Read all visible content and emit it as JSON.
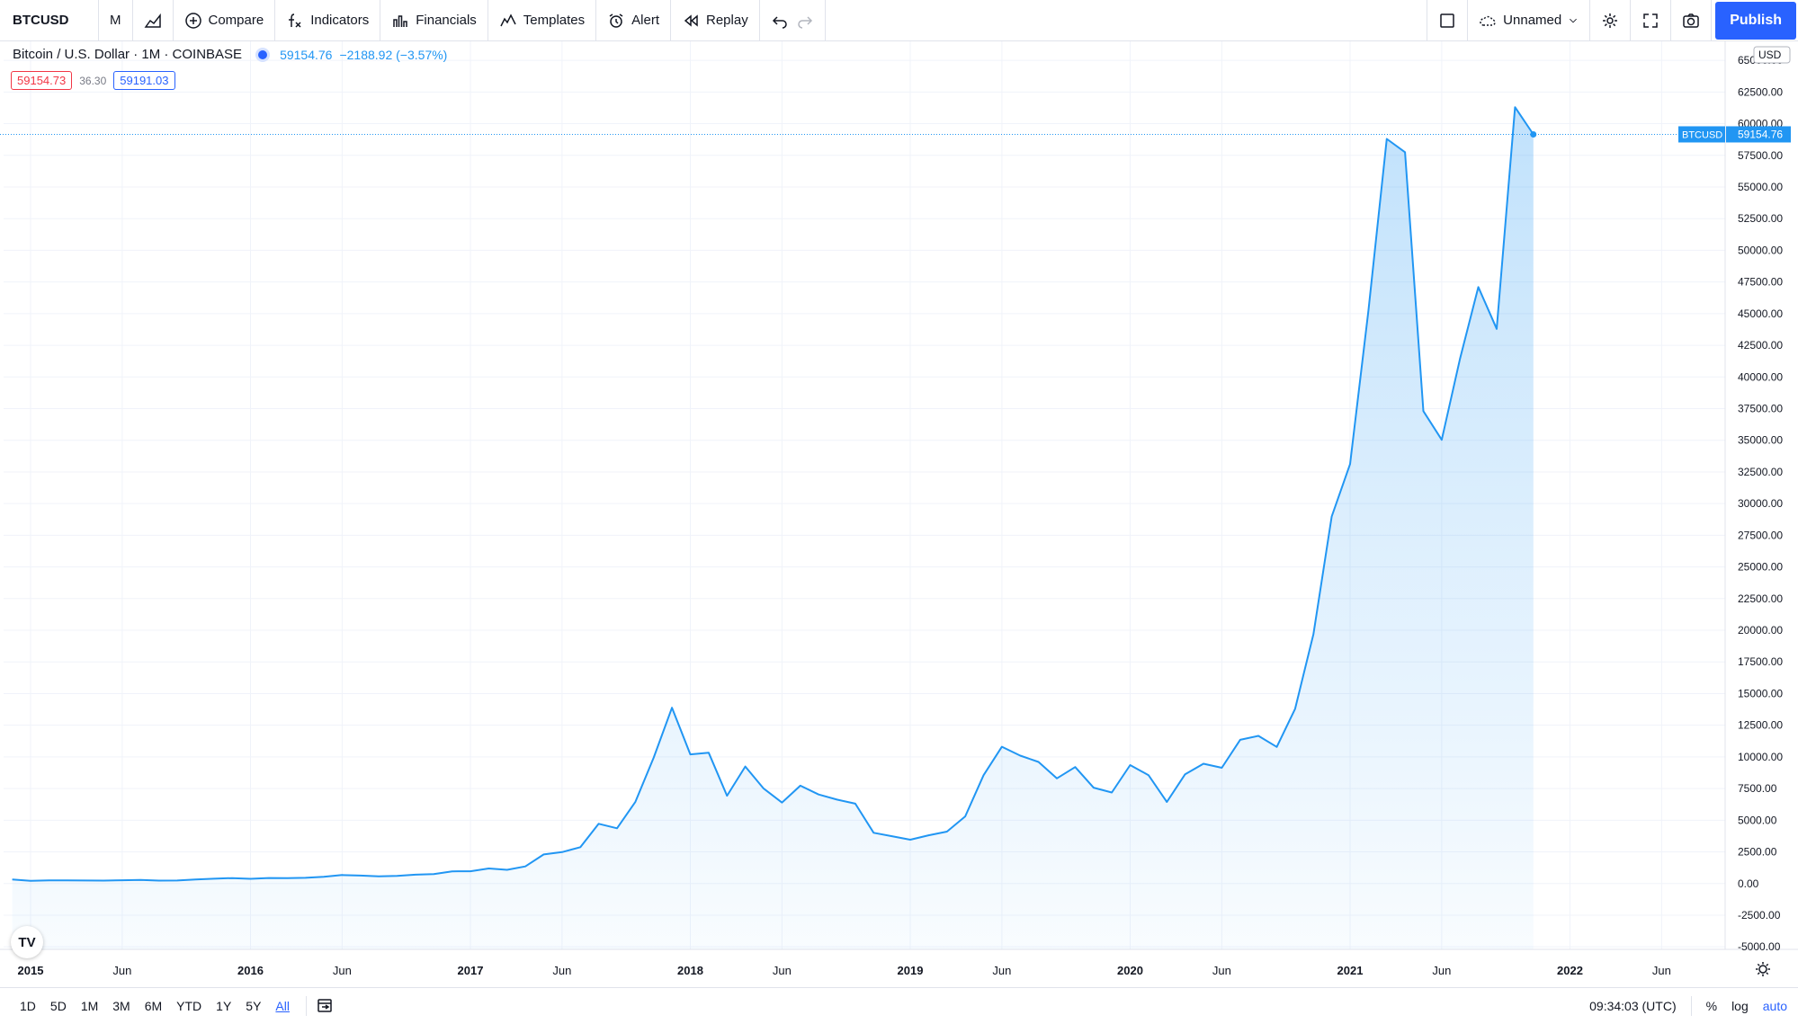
{
  "toolbar": {
    "symbol": "BTCUSD",
    "interval": "M",
    "compare": "Compare",
    "indicators": "Indicators",
    "financials": "Financials",
    "templates": "Templates",
    "alert": "Alert",
    "replay": "Replay",
    "layout_name": "Unnamed",
    "publish": "Publish"
  },
  "legend": {
    "title": "Bitcoin / U.S. Dollar · 1M · COINBASE",
    "price": "59154.76",
    "change": "−2188.92 (−3.57%)",
    "bid": "59154.73",
    "spread": "36.30",
    "ask": "59191.03"
  },
  "price_label": {
    "symbol": "BTCUSD",
    "value": "59154.76"
  },
  "currency": "USD",
  "bottom": {
    "ranges": [
      "1D",
      "5D",
      "1M",
      "3M",
      "6M",
      "YTD",
      "1Y",
      "5Y",
      "All"
    ],
    "active_range": "All",
    "time": "09:34:03 (UTC)",
    "percent": "%",
    "log": "log",
    "auto": "auto"
  },
  "colors": {
    "accent": "#2962ff",
    "line": "#2196f3",
    "negative": "#f23645"
  },
  "chart_data": {
    "type": "area",
    "series": [
      {
        "name": "BTCUSD"
      }
    ],
    "x_labels": [
      "2015",
      "Jun",
      "2016",
      "Jun",
      "2017",
      "Jun",
      "2018",
      "Jun",
      "2019",
      "Jun",
      "2020",
      "Jun",
      "2021",
      "Jun",
      "2022",
      "Jun"
    ],
    "y_ticks": [
      65000,
      62500,
      60000,
      57500,
      55000,
      52500,
      50000,
      47500,
      45000,
      42500,
      40000,
      37500,
      35000,
      32500,
      30000,
      27500,
      25000,
      22500,
      20000,
      17500,
      15000,
      12500,
      10000,
      7500,
      5000,
      2500,
      0,
      -2500,
      -5000
    ],
    "ylim": [
      -5200,
      66500
    ],
    "grid": true,
    "x": [
      "2014-12",
      "2015-01",
      "2015-02",
      "2015-03",
      "2015-04",
      "2015-05",
      "2015-06",
      "2015-07",
      "2015-08",
      "2015-09",
      "2015-10",
      "2015-11",
      "2015-12",
      "2016-01",
      "2016-02",
      "2016-03",
      "2016-04",
      "2016-05",
      "2016-06",
      "2016-07",
      "2016-08",
      "2016-09",
      "2016-10",
      "2016-11",
      "2016-12",
      "2017-01",
      "2017-02",
      "2017-03",
      "2017-04",
      "2017-05",
      "2017-06",
      "2017-07",
      "2017-08",
      "2017-09",
      "2017-10",
      "2017-11",
      "2017-12",
      "2018-01",
      "2018-02",
      "2018-03",
      "2018-04",
      "2018-05",
      "2018-06",
      "2018-07",
      "2018-08",
      "2018-09",
      "2018-10",
      "2018-11",
      "2018-12",
      "2019-01",
      "2019-02",
      "2019-03",
      "2019-04",
      "2019-05",
      "2019-06",
      "2019-07",
      "2019-08",
      "2019-09",
      "2019-10",
      "2019-11",
      "2019-12",
      "2020-01",
      "2020-02",
      "2020-03",
      "2020-04",
      "2020-05",
      "2020-06",
      "2020-07",
      "2020-08",
      "2020-09",
      "2020-10",
      "2020-11",
      "2020-12",
      "2021-01",
      "2021-02",
      "2021-03",
      "2021-04",
      "2021-05",
      "2021-06",
      "2021-07",
      "2021-08",
      "2021-09",
      "2021-10",
      "2021-11"
    ],
    "values": [
      320,
      220,
      250,
      245,
      235,
      230,
      260,
      285,
      230,
      235,
      315,
      380,
      430,
      370,
      440,
      420,
      450,
      530,
      670,
      625,
      575,
      610,
      700,
      740,
      960,
      970,
      1190,
      1080,
      1350,
      2300,
      2480,
      2870,
      4720,
      4360,
      6450,
      9950,
      13880,
      10200,
      10330,
      6930,
      9240,
      7500,
      6390,
      7730,
      7030,
      6630,
      6310,
      4010,
      3740,
      3460,
      3810,
      4100,
      5300,
      8550,
      10800,
      10100,
      9600,
      8300,
      9200,
      7570,
      7190,
      9350,
      8560,
      6440,
      8630,
      9460,
      9140,
      11350,
      11660,
      10790,
      13800,
      19700,
      28990,
      33120,
      45240,
      58800,
      57750,
      37300,
      35040,
      41460,
      47100,
      43800,
      61300,
      59154.76
    ]
  }
}
